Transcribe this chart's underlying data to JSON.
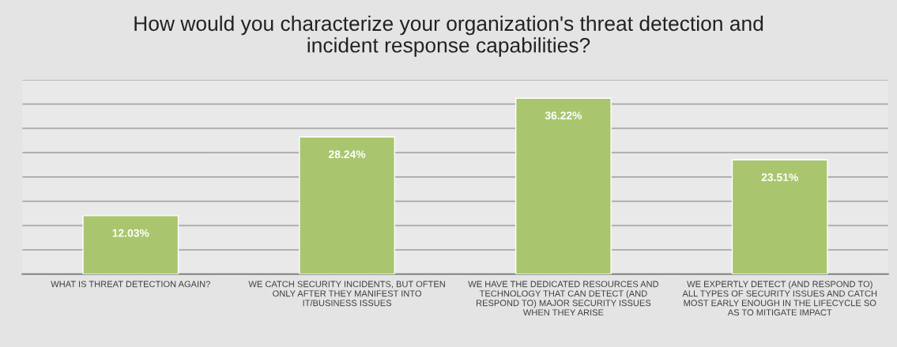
{
  "chart_data": {
    "type": "bar",
    "title": "How would you characterize your organization's threat detection and\nincident response capabilities?",
    "categories": [
      "WHAT IS THREAT DETECTION AGAIN?",
      "WE CATCH SECURITY INCIDENTS, BUT OFTEN\nONLY AFTER THEY MANIFEST INTO\nIT/BUSINESS ISSUES",
      "WE HAVE THE DEDICATED RESOURCES AND\nTECHNOLOGY THAT CAN DETECT (AND\nRESPOND TO) MAJOR SECURITY ISSUES\nWHEN THEY ARISE",
      "WE EXPERTLY DETECT (AND RESPOND TO)\nALL TYPES OF SECURITY ISSUES AND CATCH\nMOST EARLY ENOUGH IN THE LIFECYCLE SO\nAS TO MITIGATE IMPACT"
    ],
    "values": [
      12.03,
      28.24,
      36.22,
      23.51
    ],
    "value_labels": [
      "12.03%",
      "28.24%",
      "36.22%",
      "23.51%"
    ],
    "color": "#a9c66e",
    "ylim": [
      0,
      40
    ],
    "yticks": [
      {
        "value": 0,
        "label": null
      },
      {
        "value": 5,
        "label": null
      },
      {
        "value": 10,
        "label": null
      },
      {
        "value": 15,
        "label": null
      },
      {
        "value": 20,
        "label": null
      },
      {
        "value": 25,
        "label": null
      },
      {
        "value": 30,
        "label": null
      },
      {
        "value": 35,
        "label": null
      },
      {
        "value": 40,
        "label": null
      }
    ],
    "tick_labels": "x",
    "grid": "y",
    "legend": false
  }
}
